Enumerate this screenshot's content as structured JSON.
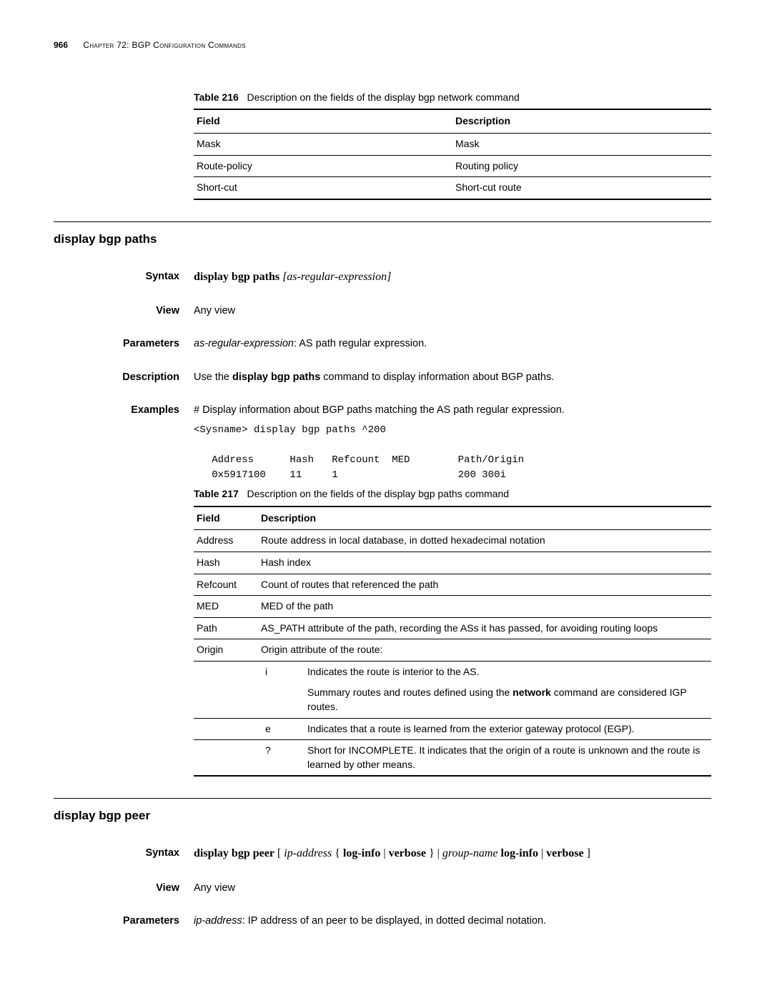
{
  "header": {
    "page_number": "966",
    "chapter": "Chapter 72: BGP Configuration Commands"
  },
  "table216": {
    "caption_label": "Table 216",
    "caption_text": "Description on the fields of the display bgp network command",
    "headers": [
      "Field",
      "Description"
    ],
    "rows": [
      [
        "Mask",
        "Mask"
      ],
      [
        "Route-policy",
        "Routing policy"
      ],
      [
        "Short-cut",
        "Short-cut route"
      ]
    ]
  },
  "section_paths": {
    "title": "display bgp paths",
    "syntax_label": "Syntax",
    "syntax_cmd": "display bgp paths",
    "syntax_arg": " [as-regular-expression]",
    "view_label": "View",
    "view_text": "Any view",
    "parameters_label": "Parameters",
    "parameters_arg": "as-regular-expression",
    "parameters_text": ": AS path regular expression.",
    "description_label": "Description",
    "description_pre": "Use the ",
    "description_cmd": "display bgp paths",
    "description_post": " command to display information about BGP paths.",
    "examples_label": "Examples",
    "examples_intro": "# Display information about BGP paths matching the AS path regular expression.",
    "examples_code": "<Sysname> display bgp paths ^200\n\n   Address      Hash   Refcount  MED        Path/Origin\n   0x5917100    11     1                    200 300i"
  },
  "table217": {
    "caption_label": "Table 217",
    "caption_text": "Description on the fields of the display bgp paths command",
    "headers": [
      "Field",
      "Description"
    ],
    "rows": [
      [
        "Address",
        "Route address in local database, in dotted hexadecimal notation"
      ],
      [
        "Hash",
        "Hash index"
      ],
      [
        "Refcount",
        "Count of routes that referenced the path"
      ],
      [
        "MED",
        "MED of the path"
      ],
      [
        "Path",
        "AS_PATH attribute of the path, recording the ASs it has passed, for avoiding routing loops"
      ]
    ],
    "origin_label": "Origin",
    "origin_desc": "Origin attribute of the route:",
    "origin_sub": [
      {
        "code": "i",
        "lines": [
          "Indicates the route is interior to the AS.",
          "Summary routes and routes defined using the <b>network</b> command are considered IGP routes."
        ]
      },
      {
        "code": "e",
        "lines": [
          "Indicates that a route is learned from the exterior gateway protocol (EGP)."
        ]
      },
      {
        "code": "?",
        "lines": [
          "Short for INCOMPLETE. It indicates that the origin of a route is unknown and the route is learned by other means."
        ]
      }
    ]
  },
  "section_peer": {
    "title": "display bgp peer",
    "syntax_label": "Syntax",
    "syntax_html": "<b>display bgp peer</b> [ <i>ip-address</i> { <b>log-info</b> | <b>verbose</b> } | <i>group-name</i> <b>log-info</b> | <b>verbose</b> ]",
    "view_label": "View",
    "view_text": "Any view",
    "parameters_label": "Parameters",
    "parameters_arg": "ip-address",
    "parameters_text": ": IP address of an peer to be displayed, in dotted decimal notation."
  }
}
